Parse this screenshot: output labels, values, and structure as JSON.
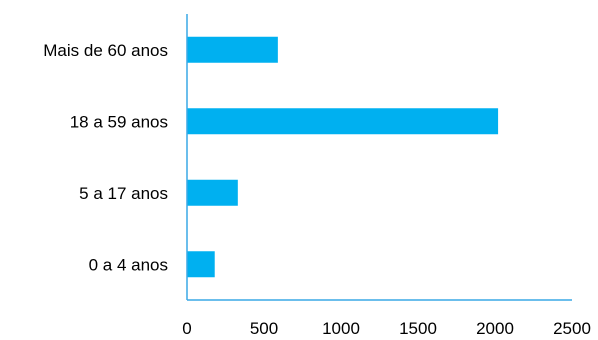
{
  "chart_data": {
    "type": "bar",
    "orientation": "horizontal",
    "title": "",
    "xlabel": "",
    "ylabel": "",
    "categories": [
      "0 a 4 anos",
      "5 a 17 anos",
      "18 a 59 anos",
      "Mais de 60 anos"
    ],
    "values": [
      180,
      330,
      2020,
      590
    ],
    "xlim": [
      0,
      2500
    ],
    "x_ticks": [
      0,
      500,
      1000,
      1500,
      2000,
      2500
    ],
    "grid": false,
    "legend": "none",
    "colors": {
      "bar": "#00b0f0",
      "axis": "#3aa9e6",
      "text": "#000000"
    }
  }
}
